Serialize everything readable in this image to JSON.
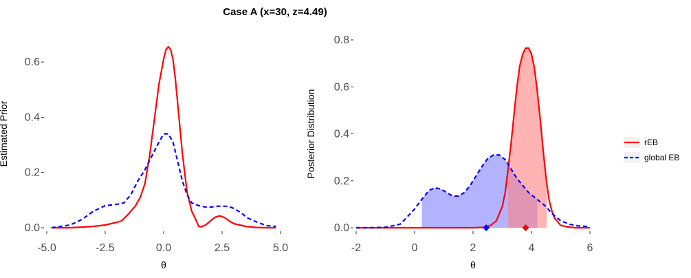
{
  "title": "Case A (x=30, z=4.49)",
  "colors": {
    "reb": "#ff0000",
    "global": "#0000ff",
    "reb_fill": "#ff8080",
    "global_fill": "#8080ff"
  },
  "legend": {
    "placement": "right",
    "entries": [
      {
        "label": "rEB",
        "color": "#ff0000",
        "linetype": "solid"
      },
      {
        "label": "global EB",
        "color": "#0000ff",
        "linetype": "dashed"
      }
    ]
  },
  "chart_data": [
    {
      "type": "line",
      "panel": "left",
      "xlabel": "θ",
      "ylabel": "Estimated Prior",
      "xlim": [
        -5,
        5
      ],
      "ylim": [
        0,
        0.68
      ],
      "xticks": [
        "-5.0",
        "-2.5",
        "0.0",
        "2.5",
        "5.0"
      ],
      "yticks": [
        "0.0",
        "0.2",
        "0.4",
        "0.6"
      ],
      "xtick_values": [
        -5,
        -2.5,
        0,
        2.5,
        5
      ],
      "ytick_values": [
        0,
        0.2,
        0.4,
        0.6
      ],
      "series": [
        {
          "name": "rEB",
          "linetype": "solid",
          "x": [
            -4.8,
            -4.0,
            -3.0,
            -2.5,
            -2.0,
            -1.8,
            -1.5,
            -1.2,
            -1.0,
            -0.8,
            -0.6,
            -0.4,
            -0.2,
            0.0,
            0.1,
            0.2,
            0.3,
            0.4,
            0.5,
            0.6,
            0.8,
            1.0,
            1.2,
            1.4,
            1.5,
            1.6,
            1.8,
            2.0,
            2.2,
            2.4,
            2.6,
            2.8,
            3.0,
            3.5,
            4.0,
            4.5,
            4.8
          ],
          "y": [
            0.0,
            0.0,
            0.005,
            0.01,
            0.02,
            0.025,
            0.05,
            0.08,
            0.11,
            0.16,
            0.26,
            0.39,
            0.52,
            0.61,
            0.645,
            0.655,
            0.645,
            0.61,
            0.54,
            0.45,
            0.27,
            0.13,
            0.06,
            0.025,
            0.005,
            0.003,
            0.01,
            0.025,
            0.038,
            0.043,
            0.037,
            0.025,
            0.015,
            0.005,
            0.001,
            0.0,
            0.0
          ]
        },
        {
          "name": "global EB",
          "linetype": "dashed",
          "x": [
            -4.8,
            -4.0,
            -3.5,
            -3.0,
            -2.5,
            -2.0,
            -1.7,
            -1.4,
            -1.1,
            -0.8,
            -0.5,
            -0.2,
            0.0,
            0.2,
            0.4,
            0.6,
            0.8,
            1.0,
            1.2,
            1.5,
            1.8,
            2.0,
            2.3,
            2.6,
            2.8,
            3.0,
            3.3,
            3.6,
            4.0,
            4.4,
            4.8
          ],
          "y": [
            0.0,
            0.01,
            0.03,
            0.06,
            0.08,
            0.085,
            0.09,
            0.12,
            0.17,
            0.21,
            0.26,
            0.31,
            0.34,
            0.34,
            0.31,
            0.24,
            0.17,
            0.12,
            0.09,
            0.08,
            0.075,
            0.075,
            0.078,
            0.078,
            0.077,
            0.07,
            0.055,
            0.035,
            0.02,
            0.008,
            0.005
          ]
        }
      ]
    },
    {
      "type": "area",
      "panel": "right",
      "xlabel": "θ",
      "ylabel": "Posterior Distribution",
      "xlim": [
        -2,
        6
      ],
      "ylim": [
        0,
        0.8
      ],
      "xticks": [
        "-2",
        "0",
        "2",
        "4",
        "6"
      ],
      "yticks": [
        "0.0",
        "0.2",
        "0.4",
        "0.6",
        "0.8"
      ],
      "xtick_values": [
        -2,
        0,
        2,
        4,
        6
      ],
      "ytick_values": [
        0,
        0.2,
        0.4,
        0.6,
        0.8
      ],
      "series": [
        {
          "name": "rEB",
          "linetype": "solid",
          "x": [
            -2.0,
            0.0,
            2.0,
            2.4,
            2.6,
            2.8,
            3.0,
            3.1,
            3.2,
            3.3,
            3.4,
            3.5,
            3.6,
            3.7,
            3.8,
            3.9,
            4.0,
            4.1,
            4.2,
            4.3,
            4.4,
            4.5,
            4.6,
            4.7,
            4.8,
            5.0,
            5.2,
            5.5,
            6.0
          ],
          "y": [
            0.0,
            0.0,
            0.0,
            0.002,
            0.01,
            0.03,
            0.09,
            0.15,
            0.25,
            0.36,
            0.48,
            0.6,
            0.69,
            0.74,
            0.765,
            0.765,
            0.74,
            0.68,
            0.58,
            0.46,
            0.33,
            0.21,
            0.12,
            0.07,
            0.04,
            0.01,
            0.004,
            0.0,
            0.0
          ]
        },
        {
          "name": "global EB",
          "linetype": "dashed",
          "x": [
            -2.0,
            -1.5,
            -1.0,
            -0.5,
            -0.3,
            0.0,
            0.3,
            0.5,
            0.7,
            0.9,
            1.1,
            1.3,
            1.5,
            1.7,
            1.9,
            2.1,
            2.3,
            2.5,
            2.7,
            2.9,
            3.1,
            3.3,
            3.5,
            3.7,
            3.9,
            4.1,
            4.3,
            4.5,
            4.7,
            5.0,
            5.3,
            5.6,
            6.0
          ],
          "y": [
            0.0,
            0.0,
            0.002,
            0.015,
            0.04,
            0.08,
            0.13,
            0.16,
            0.17,
            0.165,
            0.15,
            0.135,
            0.135,
            0.15,
            0.18,
            0.22,
            0.26,
            0.295,
            0.31,
            0.31,
            0.29,
            0.25,
            0.21,
            0.18,
            0.15,
            0.13,
            0.11,
            0.09,
            0.06,
            0.03,
            0.015,
            0.008,
            0.005
          ]
        }
      ],
      "shaded_intervals": [
        {
          "series": "global EB",
          "from": 0.25,
          "to": 4.2
        },
        {
          "series": "rEB",
          "from": 3.2,
          "to": 4.52
        }
      ],
      "point_estimates": [
        {
          "series": "global EB",
          "x": 2.45,
          "y": 0
        },
        {
          "series": "rEB",
          "x": 3.8,
          "y": 0
        }
      ]
    }
  ]
}
